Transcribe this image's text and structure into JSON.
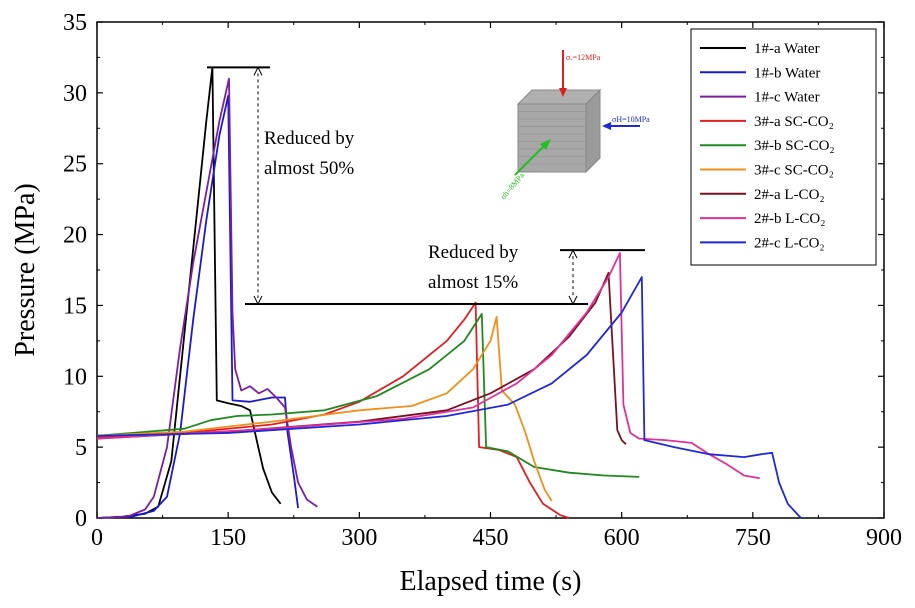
{
  "chart_data": {
    "type": "line",
    "xlabel": "Elapsed time (s)",
    "ylabel": "Pressure (MPa)",
    "xlim": [
      0,
      900
    ],
    "ylim": [
      0,
      35
    ],
    "xticks": [
      0,
      150,
      300,
      450,
      600,
      750,
      900
    ],
    "yticks": [
      0,
      5,
      10,
      15,
      20,
      25,
      30,
      35
    ],
    "grid": false,
    "legend_position": "top-right",
    "series": [
      {
        "name": "1#-a Water",
        "color": "#000000",
        "points": [
          [
            0,
            0
          ],
          [
            30,
            0.1
          ],
          [
            55,
            0.3
          ],
          [
            70,
            0.8
          ],
          [
            85,
            4
          ],
          [
            100,
            13
          ],
          [
            115,
            22
          ],
          [
            125,
            28
          ],
          [
            132,
            31.8
          ],
          [
            137,
            8.3
          ],
          [
            150,
            8.1
          ],
          [
            165,
            7.9
          ],
          [
            175,
            7.6
          ],
          [
            180,
            6.2
          ],
          [
            190,
            3.5
          ],
          [
            200,
            1.8
          ],
          [
            210,
            1.0
          ]
        ]
      },
      {
        "name": "1#-b Water",
        "color": "#1a1acd",
        "points": [
          [
            0,
            0
          ],
          [
            40,
            0.1
          ],
          [
            65,
            0.5
          ],
          [
            80,
            1.5
          ],
          [
            95,
            6
          ],
          [
            110,
            14
          ],
          [
            125,
            21
          ],
          [
            140,
            27
          ],
          [
            150,
            29.8
          ],
          [
            155,
            8.3
          ],
          [
            175,
            8.2
          ],
          [
            200,
            8.5
          ],
          [
            215,
            8.5
          ],
          [
            218,
            6
          ],
          [
            225,
            3
          ],
          [
            230,
            0.7
          ]
        ]
      },
      {
        "name": "1#-c Water",
        "color": "#7b1fa2",
        "points": [
          [
            0,
            0
          ],
          [
            35,
            0.1
          ],
          [
            55,
            0.6
          ],
          [
            65,
            1.5
          ],
          [
            80,
            5
          ],
          [
            95,
            12
          ],
          [
            110,
            18
          ],
          [
            125,
            23
          ],
          [
            140,
            28
          ],
          [
            151,
            31.0
          ],
          [
            155,
            14.5
          ],
          [
            158,
            10.5
          ],
          [
            165,
            9.0
          ],
          [
            175,
            9.3
          ],
          [
            185,
            8.8
          ],
          [
            195,
            9.1
          ],
          [
            205,
            8.5
          ],
          [
            215,
            7.8
          ],
          [
            222,
            5
          ],
          [
            230,
            2.5
          ],
          [
            240,
            1.3
          ],
          [
            252,
            0.8
          ]
        ]
      },
      {
        "name": "3#-a SC-CO₂",
        "color": "#e02020",
        "points": [
          [
            0,
            5.7
          ],
          [
            100,
            6.0
          ],
          [
            200,
            6.6
          ],
          [
            260,
            7.3
          ],
          [
            300,
            8.2
          ],
          [
            350,
            10
          ],
          [
            400,
            12.5
          ],
          [
            420,
            14
          ],
          [
            433,
            15.2
          ],
          [
            437,
            5
          ],
          [
            460,
            4.8
          ],
          [
            480,
            4.3
          ],
          [
            495,
            2.5
          ],
          [
            510,
            1.0
          ],
          [
            530,
            0.2
          ],
          [
            540,
            0
          ]
        ]
      },
      {
        "name": "3#-b SC-CO₂",
        "color": "#1f8a1f",
        "points": [
          [
            0,
            5.8
          ],
          [
            100,
            6.3
          ],
          [
            130,
            6.9
          ],
          [
            160,
            7.2
          ],
          [
            200,
            7.3
          ],
          [
            260,
            7.6
          ],
          [
            320,
            8.6
          ],
          [
            380,
            10.5
          ],
          [
            420,
            12.5
          ],
          [
            440,
            14.4
          ],
          [
            445,
            5
          ],
          [
            470,
            4.7
          ],
          [
            500,
            3.6
          ],
          [
            540,
            3.2
          ],
          [
            580,
            3.0
          ],
          [
            620,
            2.9
          ]
        ]
      },
      {
        "name": "3#-c SC-CO₂",
        "color": "#f0901a",
        "points": [
          [
            0,
            5.8
          ],
          [
            100,
            6.1
          ],
          [
            200,
            6.8
          ],
          [
            300,
            7.6
          ],
          [
            360,
            7.9
          ],
          [
            400,
            8.8
          ],
          [
            430,
            10.5
          ],
          [
            450,
            12.5
          ],
          [
            457,
            14.2
          ],
          [
            463,
            9
          ],
          [
            478,
            8
          ],
          [
            490,
            6
          ],
          [
            500,
            4
          ],
          [
            512,
            2
          ],
          [
            520,
            1.2
          ]
        ]
      },
      {
        "name": "2#-a L-CO₂",
        "color": "#7a1020",
        "points": [
          [
            0,
            5.6
          ],
          [
            150,
            6.1
          ],
          [
            300,
            6.8
          ],
          [
            400,
            7.6
          ],
          [
            450,
            8.8
          ],
          [
            500,
            10.5
          ],
          [
            540,
            12.8
          ],
          [
            570,
            15.2
          ],
          [
            585,
            17.3
          ],
          [
            595,
            6.2
          ],
          [
            600,
            5.5
          ],
          [
            605,
            5.2
          ]
        ]
      },
      {
        "name": "2#-b L-CO₂",
        "color": "#e0309a",
        "points": [
          [
            0,
            5.6
          ],
          [
            200,
            6.3
          ],
          [
            350,
            7.0
          ],
          [
            430,
            7.8
          ],
          [
            480,
            9.5
          ],
          [
            520,
            11.5
          ],
          [
            560,
            14.5
          ],
          [
            585,
            17
          ],
          [
            598,
            18.7
          ],
          [
            602,
            8
          ],
          [
            610,
            6
          ],
          [
            620,
            5.6
          ],
          [
            650,
            5.5
          ],
          [
            680,
            5.3
          ],
          [
            700,
            4.5
          ],
          [
            720,
            3.8
          ],
          [
            740,
            3.0
          ],
          [
            758,
            2.8
          ]
        ]
      },
      {
        "name": "2#-c L-CO₂",
        "color": "#1f2ad6",
        "points": [
          [
            0,
            5.8
          ],
          [
            150,
            6.0
          ],
          [
            300,
            6.6
          ],
          [
            400,
            7.2
          ],
          [
            470,
            8.0
          ],
          [
            520,
            9.5
          ],
          [
            560,
            11.5
          ],
          [
            600,
            14.5
          ],
          [
            623,
            17.0
          ],
          [
            626,
            5.5
          ],
          [
            660,
            5.0
          ],
          [
            700,
            4.5
          ],
          [
            740,
            4.3
          ],
          [
            760,
            4.5
          ],
          [
            772,
            4.6
          ],
          [
            780,
            2.5
          ],
          [
            790,
            1.0
          ],
          [
            805,
            0
          ]
        ]
      }
    ],
    "annotations": [
      {
        "text_lines": [
          "Reduced by",
          "almost 50%"
        ]
      },
      {
        "text_lines": [
          "Reduced by",
          "almost 15%"
        ]
      }
    ],
    "stress_labels": [
      {
        "text": "σᵥ=12MPa",
        "color": "#e02020"
      },
      {
        "text": "σH=10MPa",
        "color": "#1f2ad6"
      },
      {
        "text": "σh=8MPa",
        "color": "#22c022"
      }
    ]
  }
}
